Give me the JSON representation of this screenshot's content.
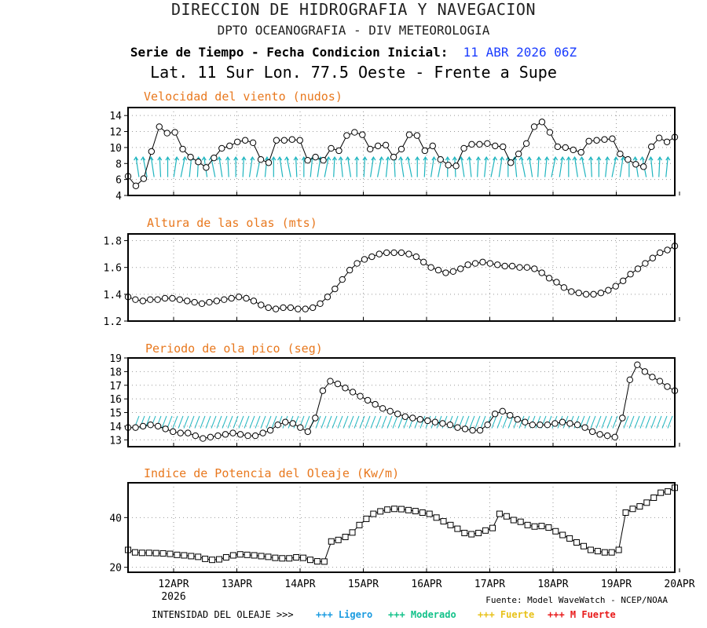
{
  "header": {
    "line1": "DIRECCION DE HIDROGRAFIA Y NAVEGACION",
    "line2": "DPTO OCEANOGRAFIA - DIV METEOROLOGIA",
    "line3_prefix": "Serie de Tiempo - Fecha Condicion Inicial:",
    "line3_date": "11 ABR 2026 06Z",
    "line4": "Lat. 11 Sur  Lon. 77.5 Oeste - Frente a Supe"
  },
  "colors": {
    "title_orange": "#e8781e",
    "date_blue": "#1a3cff",
    "arrow_cyan": "#1fb5bf",
    "ligero": "#1a9be0",
    "moderado": "#13c28a",
    "fuerte": "#e8c21a",
    "m_fuerte": "#e81a1a"
  },
  "x_axis": {
    "ticks": [
      "12APR",
      "13APR",
      "14APR",
      "15APR",
      "16APR",
      "17APR",
      "18APR",
      "19APR",
      "20APR"
    ],
    "year": "2026"
  },
  "footer": {
    "source": "Fuente: Model WaveWatch - NCEP/NOAA",
    "legend_title": "INTENSIDAD DEL OLEAJE >>>",
    "legend_items": [
      {
        "label": "+++ Ligero",
        "color": "#1a9be0"
      },
      {
        "label": "+++ Moderado",
        "color": "#13c28a"
      },
      {
        "label": "+++ Fuerte",
        "color": "#e8c21a"
      },
      {
        "label": "+++ M Fuerte",
        "color": "#e81a1a"
      }
    ]
  },
  "chart_data": [
    {
      "type": "line",
      "title": "Velocidad del viento (nudos)",
      "marker": "circle",
      "ylim": [
        4,
        15
      ],
      "yticks": [
        4,
        6,
        8,
        10,
        12,
        14
      ],
      "grid": true,
      "values": [
        6.4,
        5.2,
        6.1,
        9.5,
        12.6,
        11.8,
        11.9,
        9.8,
        8.8,
        8.2,
        7.5,
        8.7,
        9.9,
        10.2,
        10.7,
        10.9,
        10.6,
        8.5,
        8.1,
        10.9,
        10.9,
        11.0,
        10.9,
        8.4,
        8.8,
        8.4,
        9.9,
        9.6,
        11.5,
        11.9,
        11.6,
        9.8,
        10.2,
        10.3,
        8.8,
        9.8,
        11.6,
        11.5,
        9.6,
        10.2,
        8.5,
        7.8,
        7.7,
        9.9,
        10.4,
        10.4,
        10.5,
        10.2,
        10.1,
        8.1,
        9.2,
        10.5,
        12.6,
        13.2,
        11.9,
        10.1,
        10.0,
        9.7,
        9.4,
        10.8,
        10.9,
        11.0,
        11.1,
        9.2,
        8.5,
        7.9,
        7.6,
        10.1,
        11.2,
        10.7,
        11.3
      ],
      "wind_arrows": {
        "ymin": 6.3,
        "ymax": 8.8,
        "lean": [
          -0.15,
          -0.2,
          -0.15,
          -0.05,
          0.0,
          0.15,
          0.2,
          0.1,
          0.05,
          -0.15,
          -0.2,
          -0.15,
          -0.05,
          0.0,
          0.05,
          0.15,
          0.2,
          0.1,
          0.0,
          -0.15,
          -0.2,
          -0.05,
          0.0,
          0.1,
          0.15,
          0.2,
          0.05,
          -0.1,
          -0.15,
          0.0,
          0.05,
          0.15,
          0.2,
          0.1,
          -0.05,
          -0.15,
          -0.2,
          0.0,
          0.05,
          0.15,
          0.2,
          0.0,
          -0.05,
          -0.15,
          -0.1,
          0.05,
          0.1,
          0.2,
          0.15,
          0.0,
          -0.1,
          -0.2,
          -0.15,
          0.05,
          0.1,
          0.2,
          0.15,
          0.0,
          -0.15,
          -0.2,
          -0.05,
          0.0,
          0.1,
          0.2,
          0.15,
          0.0,
          -0.15,
          -0.2,
          -0.1,
          0.05,
          0.1
        ]
      }
    },
    {
      "type": "line",
      "title": "Altura de las olas (mts)",
      "marker": "circle",
      "ylim": [
        1.2,
        1.85
      ],
      "yticks": [
        1.2,
        1.4,
        1.6,
        1.8
      ],
      "grid": true,
      "values": [
        1.38,
        1.36,
        1.35,
        1.36,
        1.36,
        1.37,
        1.37,
        1.36,
        1.35,
        1.34,
        1.33,
        1.34,
        1.35,
        1.36,
        1.37,
        1.38,
        1.37,
        1.35,
        1.32,
        1.3,
        1.29,
        1.3,
        1.3,
        1.29,
        1.29,
        1.3,
        1.33,
        1.38,
        1.44,
        1.51,
        1.58,
        1.63,
        1.66,
        1.68,
        1.7,
        1.71,
        1.71,
        1.71,
        1.7,
        1.68,
        1.64,
        1.6,
        1.58,
        1.56,
        1.57,
        1.59,
        1.62,
        1.63,
        1.64,
        1.63,
        1.62,
        1.61,
        1.61,
        1.6,
        1.6,
        1.59,
        1.56,
        1.52,
        1.49,
        1.45,
        1.42,
        1.41,
        1.4,
        1.4,
        1.41,
        1.43,
        1.46,
        1.5,
        1.55,
        1.59,
        1.63,
        1.67,
        1.71,
        1.73,
        1.76
      ]
    },
    {
      "type": "line",
      "title": "Periodo de ola pico (seg)",
      "marker": "circle",
      "ylim": [
        12.5,
        19
      ],
      "yticks": [
        13,
        14,
        15,
        16,
        17,
        18,
        19
      ],
      "grid": true,
      "values": [
        13.9,
        13.9,
        14.0,
        14.1,
        14.0,
        13.8,
        13.6,
        13.5,
        13.5,
        13.3,
        13.1,
        13.2,
        13.3,
        13.4,
        13.5,
        13.4,
        13.3,
        13.3,
        13.5,
        13.7,
        14.1,
        14.3,
        14.2,
        13.9,
        13.6,
        14.6,
        16.6,
        17.3,
        17.1,
        16.8,
        16.5,
        16.2,
        15.9,
        15.6,
        15.3,
        15.1,
        14.9,
        14.7,
        14.6,
        14.5,
        14.4,
        14.3,
        14.2,
        14.1,
        13.9,
        13.8,
        13.7,
        13.7,
        14.1,
        14.9,
        15.1,
        14.8,
        14.5,
        14.3,
        14.1,
        14.1,
        14.1,
        14.2,
        14.3,
        14.2,
        14.1,
        13.9,
        13.6,
        13.4,
        13.3,
        13.2,
        14.6,
        17.4,
        18.5,
        18.0,
        17.6,
        17.3,
        16.9,
        16.6
      ],
      "swell_band": [
        13.85,
        14.75
      ]
    },
    {
      "type": "line",
      "title": "Indice de Potencia del Oleaje (Kw/m)",
      "marker": "square",
      "ylim": [
        18,
        54
      ],
      "yticks": [
        20,
        40
      ],
      "grid": true,
      "values": [
        27.0,
        26.0,
        25.8,
        25.8,
        25.7,
        25.6,
        25.4,
        25.0,
        24.8,
        24.5,
        24.2,
        23.4,
        23.0,
        23.2,
        24.0,
        24.8,
        25.2,
        25.0,
        24.8,
        24.5,
        24.2,
        23.8,
        23.6,
        23.6,
        24.0,
        23.8,
        23.0,
        22.4,
        22.3,
        30.4,
        31.0,
        32.2,
        34.0,
        37.0,
        39.5,
        41.5,
        42.5,
        43.2,
        43.5,
        43.4,
        43.0,
        42.6,
        42.0,
        41.5,
        40.0,
        38.5,
        37.0,
        35.5,
        33.8,
        33.3,
        33.8,
        34.8,
        35.8,
        41.5,
        40.5,
        39.0,
        38.3,
        37.0,
        36.4,
        36.6,
        36.0,
        34.5,
        33.0,
        31.6,
        30.0,
        28.5,
        27.0,
        26.5,
        26.0,
        26.0,
        27.0,
        42.0,
        43.5,
        44.5,
        46.0,
        48.0,
        50.0,
        50.5,
        52.0
      ]
    }
  ]
}
